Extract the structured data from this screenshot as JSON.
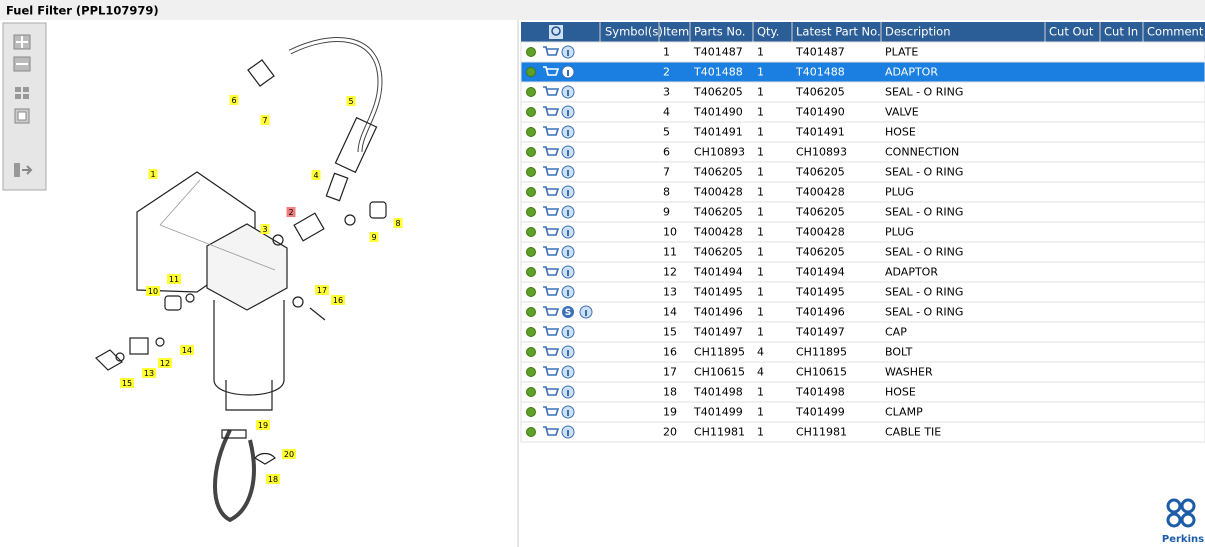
{
  "header": {
    "title": "Fuel Filter (PPL107979)"
  },
  "diagram": {
    "callouts": [
      "1",
      "2",
      "3",
      "4",
      "5",
      "6",
      "7",
      "8",
      "9",
      "10",
      "11",
      "12",
      "13",
      "14",
      "15",
      "16",
      "17",
      "18",
      "19",
      "20"
    ]
  },
  "table": {
    "columns": [
      "Symbol(s)",
      "Item",
      "Parts No.",
      "Qty.",
      "Latest Part No.",
      "Description",
      "Cut Out",
      "Cut In",
      "Comment"
    ],
    "selected_row": 1,
    "rows": [
      {
        "item": "1",
        "part": "T401487",
        "qty": "1",
        "latest": "T401487",
        "description": "PLATE"
      },
      {
        "item": "2",
        "part": "T401488",
        "qty": "1",
        "latest": "T401488",
        "description": "ADAPTOR"
      },
      {
        "item": "3",
        "part": "T406205",
        "qty": "1",
        "latest": "T406205",
        "description": "SEAL - O RING"
      },
      {
        "item": "4",
        "part": "T401490",
        "qty": "1",
        "latest": "T401490",
        "description": "VALVE"
      },
      {
        "item": "5",
        "part": "T401491",
        "qty": "1",
        "latest": "T401491",
        "description": "HOSE"
      },
      {
        "item": "6",
        "part": "CH10893",
        "qty": "1",
        "latest": "CH10893",
        "description": "CONNECTION"
      },
      {
        "item": "7",
        "part": "T406205",
        "qty": "1",
        "latest": "T406205",
        "description": "SEAL - O RING"
      },
      {
        "item": "8",
        "part": "T400428",
        "qty": "1",
        "latest": "T400428",
        "description": "PLUG"
      },
      {
        "item": "9",
        "part": "T406205",
        "qty": "1",
        "latest": "T406205",
        "description": "SEAL - O RING"
      },
      {
        "item": "10",
        "part": "T400428",
        "qty": "1",
        "latest": "T400428",
        "description": "PLUG"
      },
      {
        "item": "11",
        "part": "T406205",
        "qty": "1",
        "latest": "T406205",
        "description": "SEAL - O RING"
      },
      {
        "item": "12",
        "part": "T401494",
        "qty": "1",
        "latest": "T401494",
        "description": "ADAPTOR"
      },
      {
        "item": "13",
        "part": "T401495",
        "qty": "1",
        "latest": "T401495",
        "description": "SEAL - O RING"
      },
      {
        "item": "14",
        "part": "T401496",
        "qty": "1",
        "latest": "T401496",
        "description": "SEAL - O RING",
        "symbol": "S"
      },
      {
        "item": "15",
        "part": "T401497",
        "qty": "1",
        "latest": "T401497",
        "description": "CAP"
      },
      {
        "item": "16",
        "part": "CH11895",
        "qty": "4",
        "latest": "CH11895",
        "description": "BOLT"
      },
      {
        "item": "17",
        "part": "CH10615",
        "qty": "4",
        "latest": "CH10615",
        "description": "WASHER"
      },
      {
        "item": "18",
        "part": "T401498",
        "qty": "1",
        "latest": "T401498",
        "description": "HOSE"
      },
      {
        "item": "19",
        "part": "T401499",
        "qty": "1",
        "latest": "T401499",
        "description": "CLAMP"
      },
      {
        "item": "20",
        "part": "CH11981",
        "qty": "1",
        "latest": "CH11981",
        "description": "CABLE TIE"
      }
    ]
  },
  "logo": {
    "text": "Perkins"
  }
}
